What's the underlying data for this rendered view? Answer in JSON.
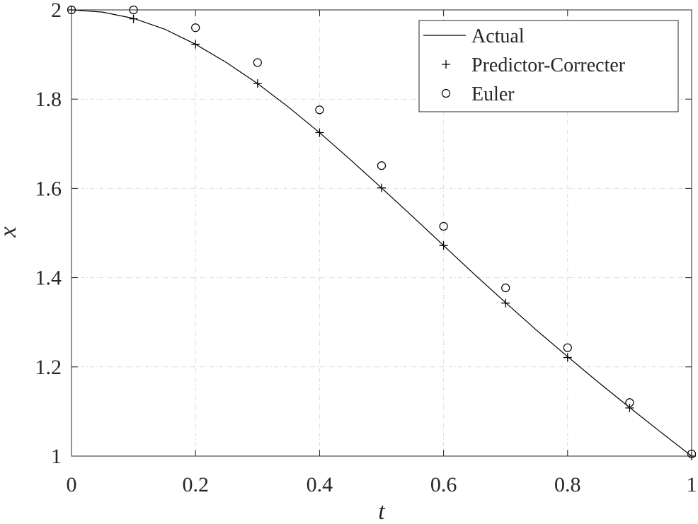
{
  "chart_data": {
    "type": "line",
    "title": "",
    "xlabel": "t",
    "ylabel": "x",
    "xlim": [
      0,
      1
    ],
    "ylim": [
      1,
      2
    ],
    "grid": true,
    "legend_position": "top-right",
    "x_ticks": [
      "0",
      "0.2",
      "0.4",
      "0.6",
      "0.8",
      "1"
    ],
    "y_ticks": [
      "1",
      "1.2",
      "1.4",
      "1.6",
      "1.8",
      "2"
    ],
    "series": [
      {
        "name": "Actual",
        "style": "line",
        "x": [
          0,
          0.05,
          0.1,
          0.15,
          0.2,
          0.25,
          0.3,
          0.35,
          0.4,
          0.45,
          0.5,
          0.55,
          0.6,
          0.65,
          0.7,
          0.75,
          0.8,
          0.85,
          0.9,
          0.95,
          1.0
        ],
        "y": [
          2.0,
          1.995,
          1.981,
          1.957,
          1.923,
          1.882,
          1.835,
          1.782,
          1.725,
          1.664,
          1.601,
          1.537,
          1.472,
          1.407,
          1.344,
          1.282,
          1.223,
          1.165,
          1.109,
          1.054,
          1.0
        ]
      },
      {
        "name": "Predictor-Correcter",
        "style": "plus",
        "x": [
          0,
          0.1,
          0.2,
          0.3,
          0.4,
          0.5,
          0.6,
          0.7,
          0.8,
          0.9,
          1.0
        ],
        "y": [
          2.0,
          1.98,
          1.923,
          1.835,
          1.725,
          1.601,
          1.472,
          1.343,
          1.221,
          1.108,
          1.0
        ]
      },
      {
        "name": "Euler",
        "style": "circle",
        "x": [
          0,
          0.1,
          0.2,
          0.3,
          0.4,
          0.5,
          0.6,
          0.7,
          0.8,
          0.9,
          1.0
        ],
        "y": [
          2.0,
          2.0,
          1.96,
          1.882,
          1.776,
          1.651,
          1.515,
          1.377,
          1.243,
          1.12,
          1.005
        ]
      }
    ]
  }
}
